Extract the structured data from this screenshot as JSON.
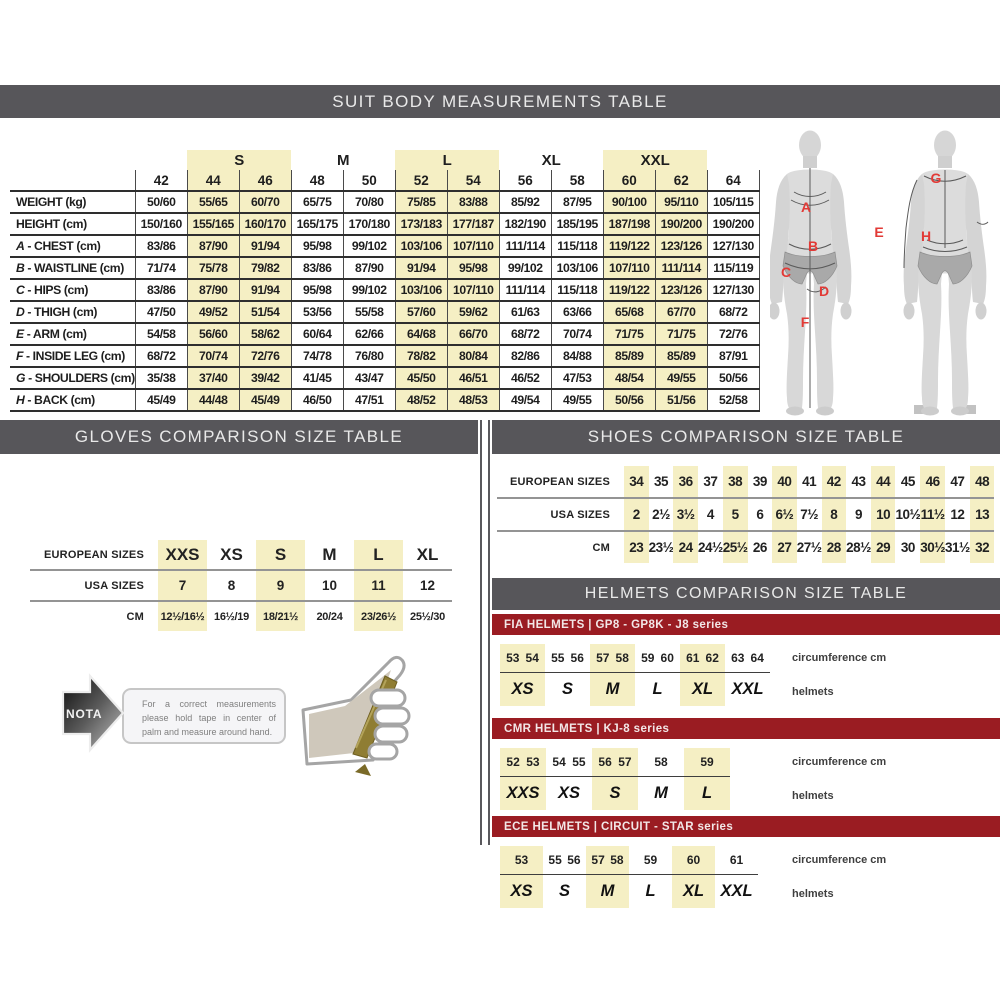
{
  "suit": {
    "title": "SUIT BODY MEASUREMENTS TABLE",
    "groups": [
      {
        "label": "",
        "span": 1,
        "highlight": false
      },
      {
        "label": "S",
        "span": 2,
        "highlight": true
      },
      {
        "label": "M",
        "span": 2,
        "highlight": false
      },
      {
        "label": "L",
        "span": 2,
        "highlight": true
      },
      {
        "label": "XL",
        "span": 2,
        "highlight": false
      },
      {
        "label": "XXL",
        "span": 2,
        "highlight": true
      },
      {
        "label": "",
        "span": 1,
        "highlight": false
      }
    ],
    "sizes": [
      "42",
      "44",
      "46",
      "48",
      "50",
      "52",
      "54",
      "56",
      "58",
      "60",
      "62",
      "64"
    ],
    "highlight_columns": [
      1,
      2,
      5,
      6,
      9,
      10
    ],
    "rows": [
      {
        "letter": "",
        "name": "WEIGHT (kg)",
        "values": [
          "50/60",
          "55/65",
          "60/70",
          "65/75",
          "70/80",
          "75/85",
          "83/88",
          "85/92",
          "87/95",
          "90/100",
          "95/110",
          "105/115"
        ]
      },
      {
        "letter": "",
        "name": "HEIGHT (cm)",
        "values": [
          "150/160",
          "155/165",
          "160/170",
          "165/175",
          "170/180",
          "173/183",
          "177/187",
          "182/190",
          "185/195",
          "187/198",
          "190/200",
          "190/200"
        ]
      },
      {
        "letter": "A",
        "name": "CHEST (cm)",
        "values": [
          "83/86",
          "87/90",
          "91/94",
          "95/98",
          "99/102",
          "103/106",
          "107/110",
          "111/114",
          "115/118",
          "119/122",
          "123/126",
          "127/130"
        ]
      },
      {
        "letter": "B",
        "name": "WAISTLINE (cm)",
        "values": [
          "71/74",
          "75/78",
          "79/82",
          "83/86",
          "87/90",
          "91/94",
          "95/98",
          "99/102",
          "103/106",
          "107/110",
          "111/114",
          "115/119"
        ]
      },
      {
        "letter": "C",
        "name": "HIPS (cm)",
        "values": [
          "83/86",
          "87/90",
          "91/94",
          "95/98",
          "99/102",
          "103/106",
          "107/110",
          "111/114",
          "115/118",
          "119/122",
          "123/126",
          "127/130"
        ]
      },
      {
        "letter": "D",
        "name": "THIGH (cm)",
        "values": [
          "47/50",
          "49/52",
          "51/54",
          "53/56",
          "55/58",
          "57/60",
          "59/62",
          "61/63",
          "63/66",
          "65/68",
          "67/70",
          "68/72"
        ]
      },
      {
        "letter": "E",
        "name": "ARM (cm)",
        "values": [
          "54/58",
          "56/60",
          "58/62",
          "60/64",
          "62/66",
          "64/68",
          "66/70",
          "68/72",
          "70/74",
          "71/75",
          "71/75",
          "72/76"
        ]
      },
      {
        "letter": "F",
        "name": "INSIDE LEG (cm)",
        "values": [
          "68/72",
          "70/74",
          "72/76",
          "74/78",
          "76/80",
          "78/82",
          "80/84",
          "82/86",
          "84/88",
          "85/89",
          "85/89",
          "87/91"
        ]
      },
      {
        "letter": "G",
        "name": "SHOULDERS (cm)",
        "values": [
          "35/38",
          "37/40",
          "39/42",
          "41/45",
          "43/47",
          "45/50",
          "46/51",
          "46/52",
          "47/53",
          "48/54",
          "49/55",
          "50/56"
        ]
      },
      {
        "letter": "H",
        "name": "BACK (cm)",
        "values": [
          "45/49",
          "44/48",
          "45/49",
          "46/50",
          "47/51",
          "48/52",
          "48/53",
          "49/54",
          "49/55",
          "50/56",
          "51/56",
          "52/58"
        ]
      }
    ]
  },
  "figures": {
    "front": [
      "A",
      "B",
      "C",
      "D",
      "F"
    ],
    "back": [
      "G",
      "E",
      "H"
    ]
  },
  "gloves": {
    "title": "GLOVES COMPARISON SIZE TABLE",
    "row_labels": [
      "EUROPEAN SIZES",
      "USA SIZES",
      "CM"
    ],
    "columns": [
      {
        "eu": "XXS",
        "usa": "7",
        "cm": "12½/16½",
        "highlight": true
      },
      {
        "eu": "XS",
        "usa": "8",
        "cm": "16½/19",
        "highlight": false
      },
      {
        "eu": "S",
        "usa": "9",
        "cm": "18/21½",
        "highlight": true
      },
      {
        "eu": "M",
        "usa": "10",
        "cm": "20/24",
        "highlight": false
      },
      {
        "eu": "L",
        "usa": "11",
        "cm": "23/26½",
        "highlight": true
      },
      {
        "eu": "XL",
        "usa": "12",
        "cm": "25½/30",
        "highlight": false
      }
    ]
  },
  "nota": {
    "label": "NOTA",
    "text": "For a correct measurements please hold tape in center of palm and measure around hand."
  },
  "shoes": {
    "title": "SHOES COMPARISON SIZE TABLE",
    "row_labels": [
      "EUROPEAN SIZES",
      "USA SIZES",
      "CM"
    ],
    "columns": [
      {
        "eu": "34",
        "usa": "2",
        "cm": "23",
        "highlight": true
      },
      {
        "eu": "35",
        "usa": "2½",
        "cm": "23½",
        "highlight": false
      },
      {
        "eu": "36",
        "usa": "3½",
        "cm": "24",
        "highlight": true
      },
      {
        "eu": "37",
        "usa": "4",
        "cm": "24½",
        "highlight": false
      },
      {
        "eu": "38",
        "usa": "5",
        "cm": "25½",
        "highlight": true
      },
      {
        "eu": "39",
        "usa": "6",
        "cm": "26",
        "highlight": false
      },
      {
        "eu": "40",
        "usa": "6½",
        "cm": "27",
        "highlight": true
      },
      {
        "eu": "41",
        "usa": "7½",
        "cm": "27½",
        "highlight": false
      },
      {
        "eu": "42",
        "usa": "8",
        "cm": "28",
        "highlight": true
      },
      {
        "eu": "43",
        "usa": "9",
        "cm": "28½",
        "highlight": false
      },
      {
        "eu": "44",
        "usa": "10",
        "cm": "29",
        "highlight": true
      },
      {
        "eu": "45",
        "usa": "10½",
        "cm": "30",
        "highlight": false
      },
      {
        "eu": "46",
        "usa": "11½",
        "cm": "30½",
        "highlight": true
      },
      {
        "eu": "47",
        "usa": "12",
        "cm": "31½",
        "highlight": false
      },
      {
        "eu": "48",
        "usa": "13",
        "cm": "32",
        "highlight": true
      }
    ]
  },
  "helmets": {
    "title": "HELMETS COMPARISON SIZE TABLE",
    "circumference_label": "circumference cm",
    "helmets_label": "helmets",
    "sections": [
      {
        "banner": "FIA HELMETS | GP8 - GP8K - J8 series",
        "circumference": [
          "53",
          "54",
          "55",
          "56",
          "57",
          "58",
          "59",
          "60",
          "61",
          "62",
          "63",
          "64"
        ],
        "sizes": [
          {
            "label": "XS",
            "span": 2,
            "highlight": true
          },
          {
            "label": "S",
            "span": 2,
            "highlight": false
          },
          {
            "label": "M",
            "span": 2,
            "highlight": true
          },
          {
            "label": "L",
            "span": 2,
            "highlight": false
          },
          {
            "label": "XL",
            "span": 2,
            "highlight": true
          },
          {
            "label": "XXL",
            "span": 2,
            "highlight": false
          }
        ]
      },
      {
        "banner": "CMR HELMETS | KJ-8 series",
        "circumference": [
          "52",
          "53",
          "54",
          "55",
          "56",
          "57",
          "58",
          "59"
        ],
        "sizes": [
          {
            "label": "XXS",
            "span": 2,
            "highlight": true
          },
          {
            "label": "XS",
            "span": 2,
            "highlight": false
          },
          {
            "label": "S",
            "span": 2,
            "highlight": true
          },
          {
            "label": "M",
            "span": 1,
            "highlight": false
          },
          {
            "label": "L",
            "span": 1,
            "highlight": true
          }
        ]
      },
      {
        "banner": "ECE HELMETS | CIRCUIT - STAR series",
        "circumference": [
          "53",
          "55",
          "56",
          "57",
          "58",
          "59",
          "60",
          "61"
        ],
        "sizes": [
          {
            "label": "XS",
            "span": 1,
            "highlight": true
          },
          {
            "label": "S",
            "span": 2,
            "highlight": false
          },
          {
            "label": "M",
            "span": 2,
            "highlight": true
          },
          {
            "label": "L",
            "span": 1,
            "highlight": false
          },
          {
            "label": "XL",
            "span": 1,
            "highlight": true
          },
          {
            "label": "XXL",
            "span": 1,
            "highlight": false
          }
        ]
      }
    ]
  }
}
